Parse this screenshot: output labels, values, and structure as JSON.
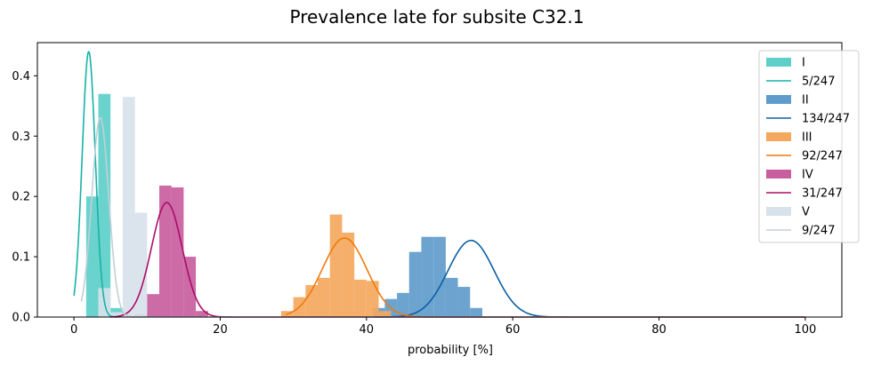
{
  "chart_data": {
    "type": "bar",
    "title": "Prevalence late for subsite C32.1",
    "xlabel": "probability [%]",
    "ylabel": "",
    "xlim": [
      -5,
      105
    ],
    "ylim": [
      0,
      0.455
    ],
    "xticks": [
      0,
      20,
      40,
      60,
      80,
      100
    ],
    "yticks": [
      0.0,
      0.1,
      0.2,
      0.3,
      0.4
    ],
    "ytick_labels": [
      "0.0",
      "0.1",
      "0.2",
      "0.3",
      "0.4"
    ],
    "legend_position": "top-right",
    "grid": false,
    "groups": [
      {
        "name": "I",
        "curve_name": "5/247",
        "hist_color": "#5ecfc9",
        "curve_color": "#16b2a8",
        "bin_width": 1.67,
        "bins": [
          [
            1.67,
            0.2
          ],
          [
            3.33,
            0.37
          ],
          [
            5.0,
            0.015
          ]
        ],
        "curve": {
          "mu": 2.02,
          "sigma": 0.9,
          "peak": 0.44,
          "xmin": 0,
          "xmax": 6
        }
      },
      {
        "name": "II",
        "curve_name": "134/247",
        "hist_color": "#5f9ccb",
        "curve_color": "#0b5fa5",
        "bin_width": 1.67,
        "bins": [
          [
            40.83,
            0.015
          ],
          [
            42.5,
            0.03
          ],
          [
            44.17,
            0.04
          ],
          [
            45.83,
            0.108
          ],
          [
            47.5,
            0.133
          ],
          [
            49.17,
            0.133
          ],
          [
            50.83,
            0.065
          ],
          [
            52.5,
            0.05
          ],
          [
            54.17,
            0.015
          ]
        ],
        "curve": {
          "mu": 54.3,
          "sigma": 3.15,
          "peak": 0.127,
          "xmin": 41,
          "xmax": 100
        }
      },
      {
        "name": "III",
        "curve_name": "92/247",
        "hist_color": "#f4a85e",
        "curve_color": "#ef7a0c",
        "bin_width": 1.67,
        "bins": [
          [
            28.33,
            0.01
          ],
          [
            30.0,
            0.033
          ],
          [
            31.67,
            0.053
          ],
          [
            33.33,
            0.065
          ],
          [
            35.0,
            0.17
          ],
          [
            36.67,
            0.14
          ],
          [
            38.33,
            0.062
          ],
          [
            40.0,
            0.06
          ],
          [
            41.67,
            0.01
          ]
        ],
        "curve": {
          "mu": 37.0,
          "sigma": 3.05,
          "peak": 0.131,
          "xmin": 29,
          "xmax": 100
        }
      },
      {
        "name": "IV",
        "curve_name": "31/247",
        "hist_color": "#c95e9f",
        "curve_color": "#ab0c68",
        "bin_width": 1.67,
        "bins": [
          [
            8.33,
            0.005
          ],
          [
            10.0,
            0.038
          ],
          [
            11.67,
            0.218
          ],
          [
            13.33,
            0.215
          ],
          [
            15.0,
            0.1
          ],
          [
            16.67,
            0.01
          ]
        ],
        "curve": {
          "mu": 12.7,
          "sigma": 2.1,
          "peak": 0.19,
          "xmin": 5,
          "xmax": 100
        }
      },
      {
        "name": "V",
        "curve_name": "9/247",
        "hist_color": "#d8e2ea",
        "curve_color": "#c2cfd8",
        "bin_width": 1.67,
        "bins": [
          [
            3.33,
            0.048
          ],
          [
            5.0,
            0.008
          ],
          [
            6.67,
            0.365
          ],
          [
            8.33,
            0.173
          ]
        ],
        "curve": {
          "mu": 3.6,
          "sigma": 1.15,
          "peak": 0.332,
          "xmin": 1,
          "xmax": 100
        }
      }
    ]
  }
}
